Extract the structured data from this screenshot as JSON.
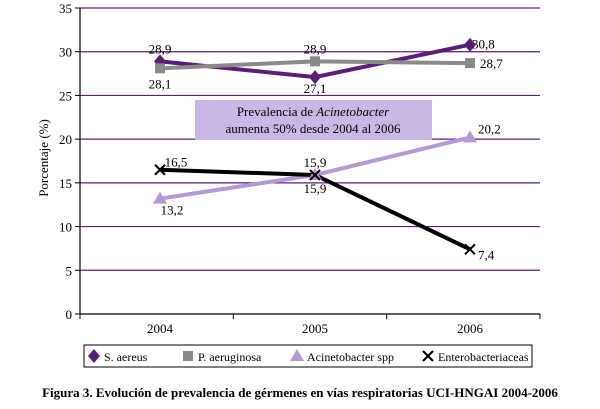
{
  "chart_data": {
    "type": "line",
    "categories": [
      "2004",
      "2005",
      "2006"
    ],
    "ylabel": "Porcentaje (%)",
    "ylim": [
      0,
      35
    ],
    "yticks": [
      "0",
      "5",
      "10",
      "15",
      "20",
      "25",
      "30",
      "35"
    ],
    "grid": true,
    "legend": "bottom",
    "series": [
      {
        "name": "S. aereus",
        "values": [
          28.9,
          27.1,
          30.8
        ],
        "labels": [
          "28,9",
          "27,1",
          "30,8"
        ],
        "color": "#5a1e78",
        "marker": "diamond"
      },
      {
        "name": "P. aeruginosa",
        "values": [
          28.1,
          28.9,
          28.7
        ],
        "labels": [
          "28,1",
          "28,9",
          "28,7"
        ],
        "color": "#8a8a8a",
        "marker": "square"
      },
      {
        "name": "Acinetobacter spp",
        "values": [
          13.2,
          15.9,
          20.2
        ],
        "labels": [
          "13,2",
          "15,9",
          "20,2"
        ],
        "color": "#b39ad6",
        "marker": "triangle"
      },
      {
        "name": "Enterobacteriaceas",
        "values": [
          16.5,
          15.9,
          7.4
        ],
        "labels": [
          "16,5",
          "15,9",
          "7,4"
        ],
        "color": "#000000",
        "marker": "x"
      }
    ],
    "annotation": {
      "line1": "Prevalencia de ",
      "line1_italic": "Acinetobacter",
      "line2": "aumenta 50% desde 2004 al 2006",
      "background": "#c9b8e6"
    },
    "grid_color": "#5a1e78"
  },
  "caption": "Figura 3. Evolución de prevalencia de gérmenes en vías respiratorias UCI-HNGAI 2004-2006"
}
